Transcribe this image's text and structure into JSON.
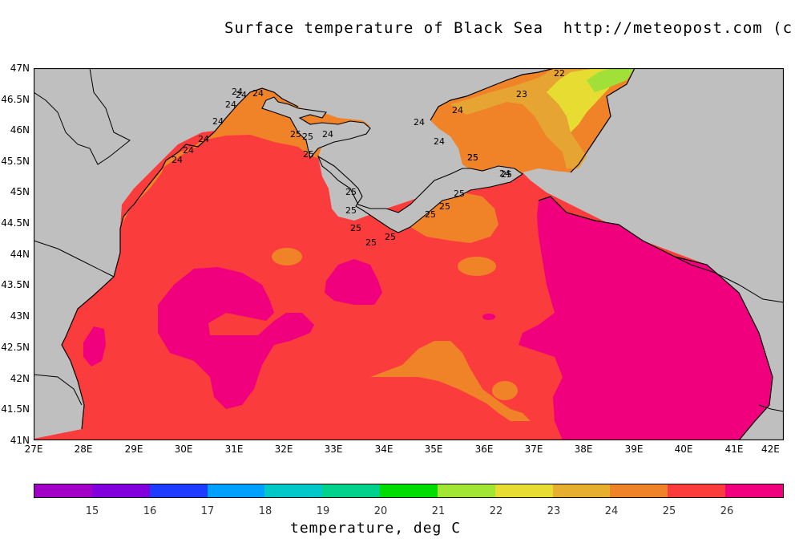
{
  "title": "Surface temperature of Black Sea  http://meteopost.com (c)",
  "lat_labels": [
    "47N",
    "46.5N",
    "46N",
    "45.5N",
    "45N",
    "44.5N",
    "44N",
    "43.5N",
    "43N",
    "42.5N",
    "42N",
    "41.5N",
    "41N"
  ],
  "lon_labels": [
    "27E",
    "28E",
    "29E",
    "30E",
    "31E",
    "32E",
    "33E",
    "34E",
    "35E",
    "36E",
    "37E",
    "38E",
    "39E",
    "40E",
    "41E",
    "42E"
  ],
  "colors": {
    "land": "#bfbfbf",
    "c22": "#a0e038",
    "c23": "#e6dc32",
    "c24": "#e6a532",
    "c25": "#f08228",
    "c26": "#fa3c3c",
    "c27": "#f0007d"
  },
  "colorbar": {
    "colors": [
      "#a000c8",
      "#8200dc",
      "#1e3cff",
      "#00a0ff",
      "#00c8c8",
      "#00d28c",
      "#00dc00",
      "#a0e632",
      "#e6dc32",
      "#e6af2d",
      "#f08228",
      "#fa3c3c",
      "#f0007d"
    ],
    "ticks": [
      "15",
      "16",
      "17",
      "18",
      "19",
      "20",
      "21",
      "22",
      "23",
      "24",
      "25",
      "26"
    ],
    "label": "temperature, deg C"
  },
  "contour_labels": [
    "24",
    "24",
    "24",
    "24",
    "24",
    "24",
    "24",
    "24",
    "24",
    "25",
    "25",
    "25",
    "24",
    "25",
    "25",
    "25",
    "25",
    "25",
    "25",
    "25",
    "25",
    "25",
    "24",
    "24",
    "24",
    "23",
    "25",
    "25",
    "22"
  ]
}
